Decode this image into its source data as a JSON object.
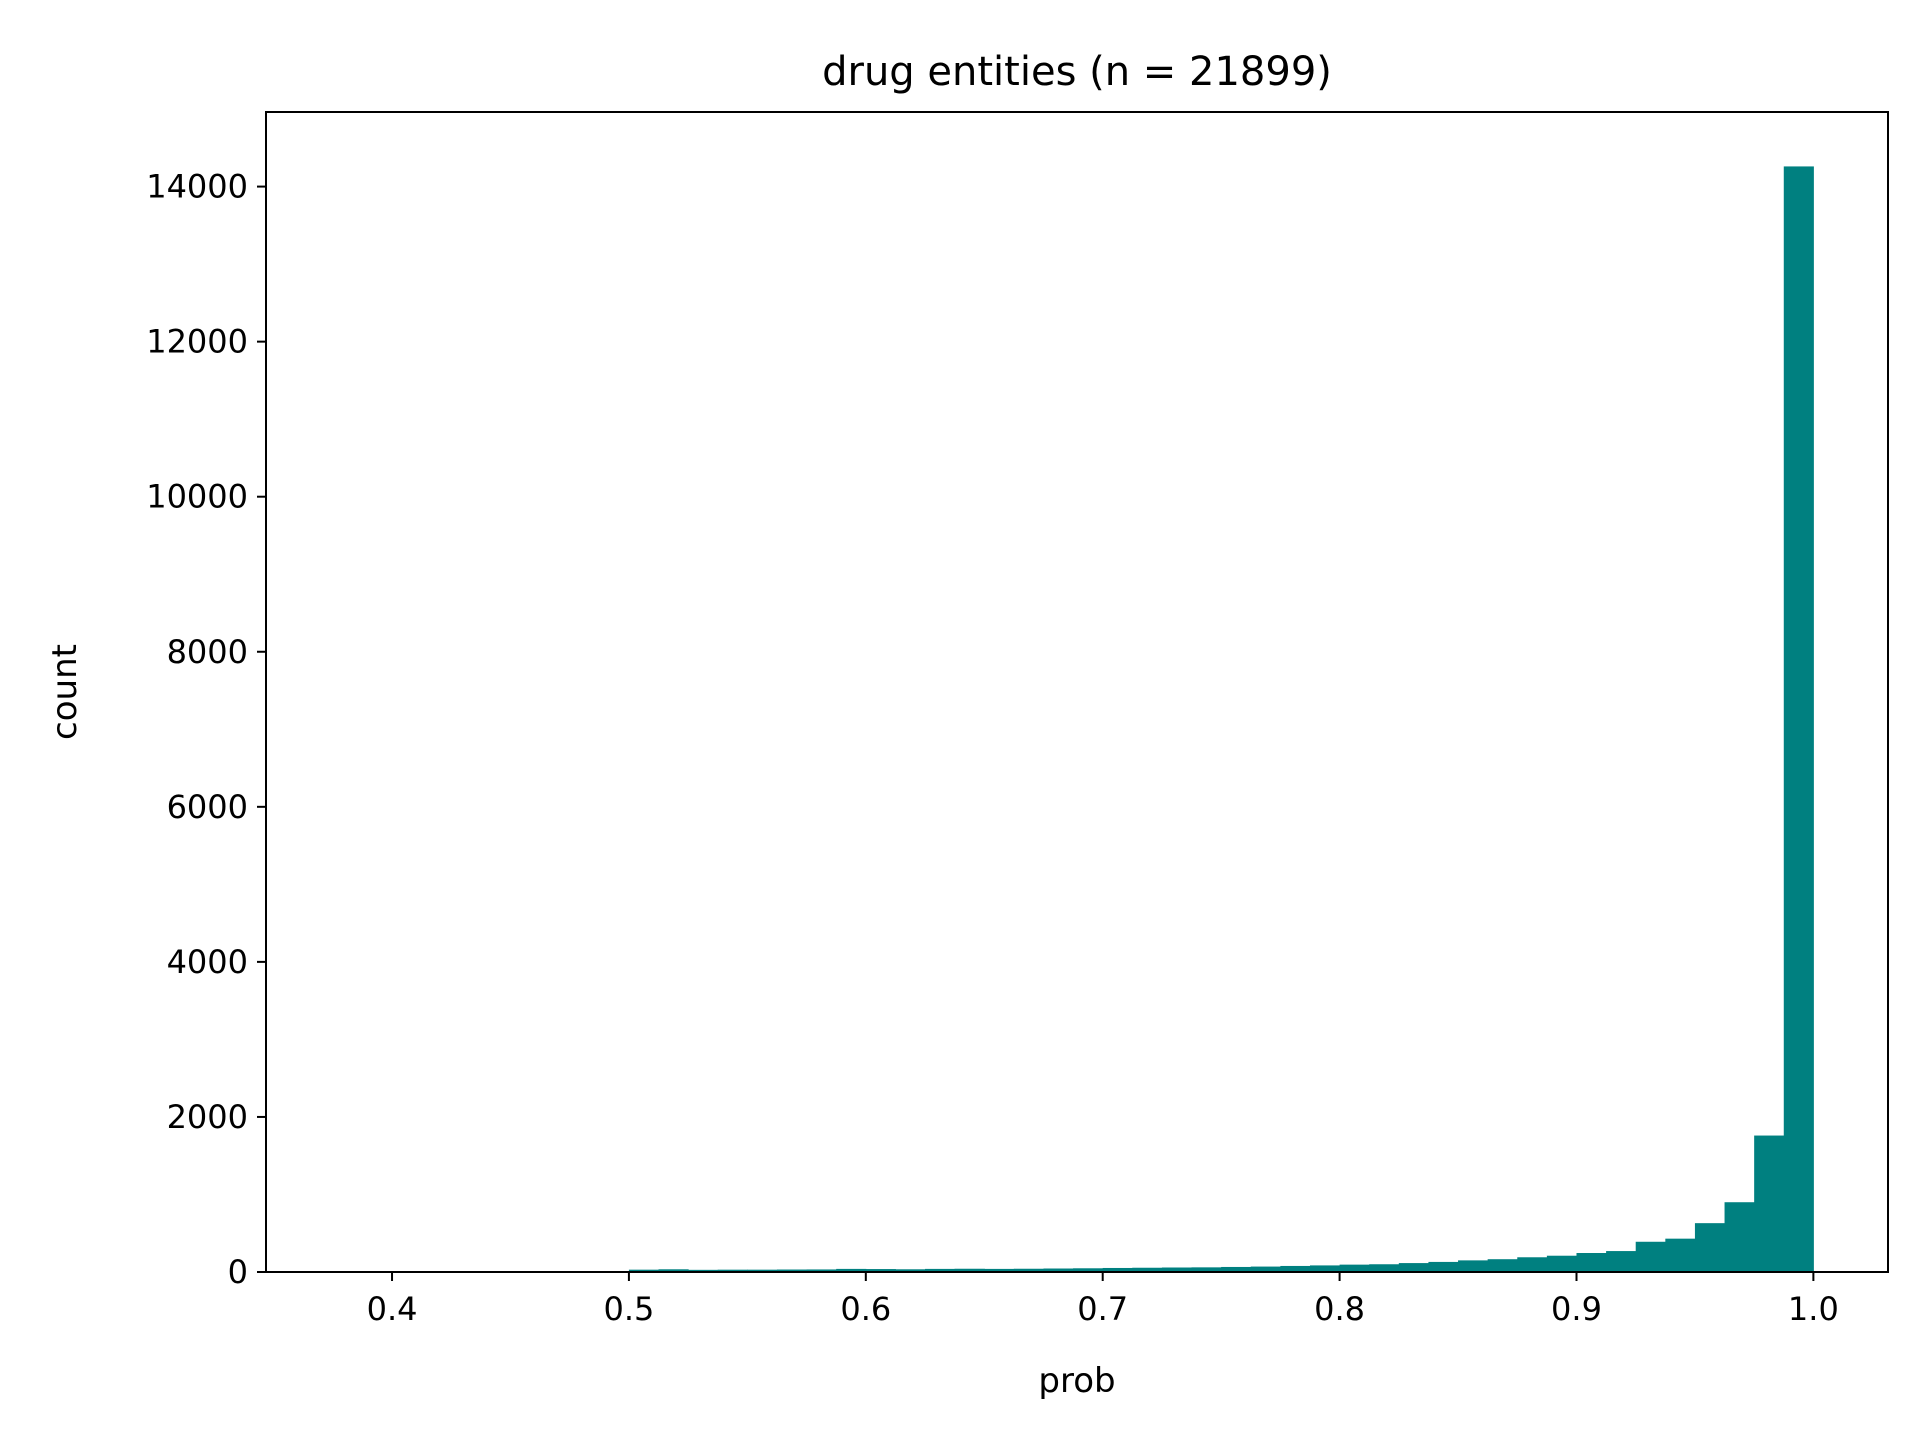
{
  "chart_data": {
    "type": "bar",
    "title": "drug entities (n = 21899)",
    "xlabel": "prob",
    "ylabel": "count",
    "xlim": [
      0.3468,
      1.0315
    ],
    "ylim": [
      0,
      14962
    ],
    "xticks": [
      {
        "value": 0.4,
        "label": "0.4"
      },
      {
        "value": 0.5,
        "label": "0.5"
      },
      {
        "value": 0.6,
        "label": "0.6"
      },
      {
        "value": 0.7,
        "label": "0.7"
      },
      {
        "value": 0.8,
        "label": "0.8"
      },
      {
        "value": 0.9,
        "label": "0.9"
      },
      {
        "value": 1.0,
        "label": "1.0"
      }
    ],
    "yticks": [
      {
        "value": 0,
        "label": "0"
      },
      {
        "value": 2000,
        "label": "2000"
      },
      {
        "value": 4000,
        "label": "4000"
      },
      {
        "value": 6000,
        "label": "6000"
      },
      {
        "value": 8000,
        "label": "8000"
      },
      {
        "value": 10000,
        "label": "10000"
      },
      {
        "value": 12000,
        "label": "12000"
      },
      {
        "value": 14000,
        "label": "14000"
      }
    ],
    "bar_color": "#008080",
    "bin_width": 0.0125,
    "bins": [
      {
        "x0": 0.5,
        "value": 30
      },
      {
        "x0": 0.5125,
        "value": 35
      },
      {
        "x0": 0.525,
        "value": 28
      },
      {
        "x0": 0.5375,
        "value": 30
      },
      {
        "x0": 0.55,
        "value": 30
      },
      {
        "x0": 0.5625,
        "value": 32
      },
      {
        "x0": 0.575,
        "value": 33
      },
      {
        "x0": 0.5875,
        "value": 40
      },
      {
        "x0": 0.6,
        "value": 38
      },
      {
        "x0": 0.6125,
        "value": 35
      },
      {
        "x0": 0.625,
        "value": 40
      },
      {
        "x0": 0.6375,
        "value": 42
      },
      {
        "x0": 0.65,
        "value": 40
      },
      {
        "x0": 0.6625,
        "value": 42
      },
      {
        "x0": 0.675,
        "value": 45
      },
      {
        "x0": 0.6875,
        "value": 48
      },
      {
        "x0": 0.7,
        "value": 52
      },
      {
        "x0": 0.7125,
        "value": 55
      },
      {
        "x0": 0.725,
        "value": 58
      },
      {
        "x0": 0.7375,
        "value": 60
      },
      {
        "x0": 0.75,
        "value": 65
      },
      {
        "x0": 0.7625,
        "value": 70
      },
      {
        "x0": 0.775,
        "value": 78
      },
      {
        "x0": 0.7875,
        "value": 85
      },
      {
        "x0": 0.8,
        "value": 95
      },
      {
        "x0": 0.8125,
        "value": 100
      },
      {
        "x0": 0.825,
        "value": 115
      },
      {
        "x0": 0.8375,
        "value": 130
      },
      {
        "x0": 0.85,
        "value": 150
      },
      {
        "x0": 0.8625,
        "value": 165
      },
      {
        "x0": 0.875,
        "value": 190
      },
      {
        "x0": 0.8875,
        "value": 210
      },
      {
        "x0": 0.9,
        "value": 245
      },
      {
        "x0": 0.9125,
        "value": 270
      },
      {
        "x0": 0.925,
        "value": 390
      },
      {
        "x0": 0.9375,
        "value": 430
      },
      {
        "x0": 0.95,
        "value": 630
      },
      {
        "x0": 0.9625,
        "value": 900
      },
      {
        "x0": 0.975,
        "value": 1760
      },
      {
        "x0": 0.9875,
        "value": 14260
      }
    ]
  }
}
